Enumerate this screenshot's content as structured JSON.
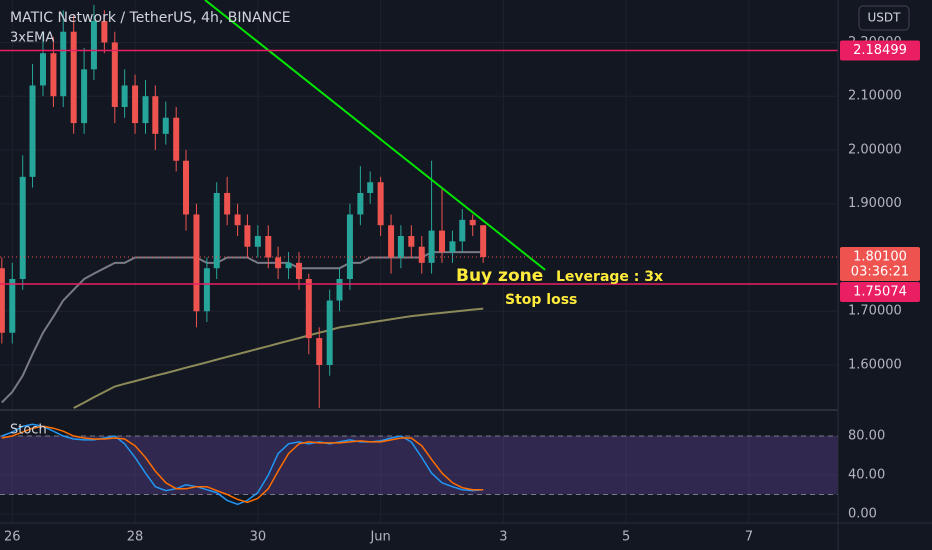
{
  "chart_data": [
    {
      "type": "candlestick",
      "title": "MATIC Network / TetherUS, 4h, BINANCE",
      "subtitle": "3xEMA",
      "currency": "USDT",
      "xlim": [
        -0.2,
        13.45
      ],
      "ylim": [
        1.52,
        2.279
      ],
      "yticks": [
        {
          "value": 1.6,
          "label": "1.60000"
        },
        {
          "value": 1.7,
          "label": "1.70000"
        },
        {
          "value": 1.9,
          "label": "1.90000"
        },
        {
          "value": 2.0,
          "label": "2.00000"
        },
        {
          "value": 2.1,
          "label": "2.10000"
        },
        {
          "value": 2.2,
          "label": "2.20000"
        }
      ],
      "grid": true,
      "up_color": "#26a69a",
      "down_color": "#ef5350",
      "x": [
        -0.17,
        0,
        0.17,
        0.33,
        0.5,
        0.67,
        0.83,
        1,
        1.17,
        1.33,
        1.5,
        1.67,
        1.83,
        2,
        2.17,
        2.33,
        2.5,
        2.67,
        2.83,
        3,
        3.17,
        3.33,
        3.5,
        3.67,
        3.83,
        4,
        4.17,
        4.33,
        4.5,
        4.67,
        4.83,
        5,
        5.17,
        5.33,
        5.5,
        5.67,
        5.83,
        6,
        6.17,
        6.33,
        6.5,
        6.67,
        6.83,
        7,
        7.17,
        7.33,
        7.5,
        7.67
      ],
      "open": [
        1.78,
        1.66,
        1.76,
        1.95,
        2.12,
        2.18,
        2.1,
        2.22,
        2.05,
        2.15,
        2.24,
        2.2,
        2.08,
        2.12,
        2.05,
        2.1,
        2.03,
        2.06,
        1.98,
        1.88,
        1.7,
        1.78,
        1.92,
        1.88,
        1.86,
        1.82,
        1.84,
        1.8,
        1.78,
        1.79,
        1.76,
        1.65,
        1.6,
        1.72,
        1.76,
        1.88,
        1.92,
        1.94,
        1.86,
        1.8,
        1.84,
        1.82,
        1.79,
        1.85,
        1.81,
        1.83,
        1.87,
        1.86
      ],
      "high": [
        1.8,
        1.79,
        1.99,
        2.16,
        2.22,
        2.21,
        2.26,
        2.25,
        2.19,
        2.27,
        2.26,
        2.22,
        2.15,
        2.14,
        2.13,
        2.12,
        2.09,
        2.08,
        2.0,
        1.9,
        1.8,
        1.94,
        1.95,
        1.9,
        1.88,
        1.86,
        1.86,
        1.82,
        1.81,
        1.81,
        1.77,
        1.67,
        1.74,
        1.78,
        1.9,
        1.97,
        1.96,
        1.95,
        1.88,
        1.86,
        1.86,
        1.84,
        1.98,
        1.93,
        1.85,
        1.89,
        1.88,
        1.86
      ],
      "low": [
        1.64,
        1.64,
        1.74,
        1.93,
        2.1,
        2.08,
        2.08,
        2.03,
        2.03,
        2.13,
        2.18,
        2.05,
        2.06,
        2.03,
        2.03,
        2.0,
        2.01,
        1.96,
        1.85,
        1.67,
        1.68,
        1.76,
        1.86,
        1.84,
        1.8,
        1.8,
        1.78,
        1.76,
        1.76,
        1.74,
        1.62,
        1.52,
        1.58,
        1.7,
        1.74,
        1.86,
        1.9,
        1.84,
        1.77,
        1.78,
        1.8,
        1.77,
        1.77,
        1.79,
        1.79,
        1.81,
        1.84,
        1.79
      ],
      "close": [
        1.66,
        1.76,
        1.95,
        2.12,
        2.18,
        2.1,
        2.22,
        2.05,
        2.15,
        2.24,
        2.2,
        2.08,
        2.12,
        2.05,
        2.1,
        2.03,
        2.06,
        1.98,
        1.88,
        1.7,
        1.78,
        1.92,
        1.88,
        1.86,
        1.82,
        1.84,
        1.8,
        1.78,
        1.79,
        1.76,
        1.65,
        1.6,
        1.72,
        1.76,
        1.88,
        1.92,
        1.94,
        1.86,
        1.8,
        1.84,
        1.82,
        1.79,
        1.85,
        1.81,
        1.83,
        1.87,
        1.86,
        1.801
      ],
      "series": [
        {
          "color": "#787b86",
          "values": [
            1.53,
            1.55,
            1.58,
            1.62,
            1.66,
            1.69,
            1.72,
            1.74,
            1.76,
            1.77,
            1.78,
            1.79,
            1.79,
            1.8,
            1.8,
            1.8,
            1.8,
            1.8,
            1.8,
            1.8,
            1.79,
            1.79,
            1.8,
            1.8,
            1.8,
            1.79,
            1.79,
            1.79,
            1.79,
            1.78,
            1.78,
            1.78,
            1.78,
            1.78,
            1.79,
            1.79,
            1.8,
            1.8,
            1.8,
            1.8,
            1.8,
            1.8,
            1.81,
            1.81,
            1.81,
            1.81,
            1.81,
            1.81
          ]
        },
        {
          "color": "#8d8a5a",
          "values": [
            null,
            null,
            null,
            null,
            null,
            null,
            null,
            1.52,
            1.53,
            1.54,
            1.55,
            1.56,
            1.565,
            1.57,
            1.575,
            1.58,
            1.585,
            1.59,
            1.595,
            1.6,
            1.605,
            1.61,
            1.615,
            1.62,
            1.625,
            1.63,
            1.635,
            1.64,
            1.645,
            1.65,
            1.655,
            1.66,
            1.665,
            1.67,
            1.673,
            1.676,
            1.679,
            1.682,
            1.685,
            1.688,
            1.691,
            1.693,
            1.695,
            1.697,
            1.699,
            1.701,
            1.703,
            1.705
          ]
        }
      ],
      "trendline": {
        "color": "#00e600",
        "x": [
          3.14,
          8.68
        ],
        "y": [
          2.279,
          1.777
        ]
      },
      "hlines": [
        {
          "value": 2.18499,
          "color": "#e91e63"
        },
        {
          "value": 1.75074,
          "color": "#e91e63"
        }
      ],
      "last_price": {
        "value": 1.801,
        "label": "1.80100",
        "countdown": "03:36:21",
        "color": "#ef5350"
      },
      "annotations": [
        "Buy zone",
        "Leverage : 3x",
        "Stop loss"
      ]
    },
    {
      "type": "stoch",
      "title": "Stoch",
      "xlim": [
        -0.2,
        13.45
      ],
      "ylim": [
        -9.2,
        106.7
      ],
      "xticks": [
        {
          "value": 0,
          "label": "26"
        },
        {
          "value": 2,
          "label": "28"
        },
        {
          "value": 4,
          "label": "30"
        },
        {
          "value": 6,
          "label": "Jun"
        },
        {
          "value": 8,
          "label": "3"
        },
        {
          "value": 10,
          "label": "5"
        },
        {
          "value": 12,
          "label": "7"
        }
      ],
      "yticks": [
        {
          "value": 0,
          "label": "0.00"
        },
        {
          "value": 40,
          "label": "40.00"
        },
        {
          "value": 80,
          "label": "80.00"
        }
      ],
      "band": [
        20,
        80
      ],
      "band_color": "#7e57c2",
      "x": [
        -0.17,
        0,
        0.17,
        0.33,
        0.5,
        0.67,
        0.83,
        1,
        1.17,
        1.33,
        1.5,
        1.67,
        1.83,
        2,
        2.17,
        2.33,
        2.5,
        2.67,
        2.83,
        3,
        3.17,
        3.33,
        3.5,
        3.67,
        3.83,
        4,
        4.17,
        4.33,
        4.5,
        4.67,
        4.83,
        5,
        5.17,
        5.33,
        5.5,
        5.67,
        5.83,
        6,
        6.17,
        6.33,
        6.5,
        6.67,
        6.83,
        7,
        7.17,
        7.33,
        7.5,
        7.67
      ],
      "series": [
        {
          "color": "#2196f3",
          "values": [
            80,
            84,
            90,
            92,
            90,
            85,
            80,
            77,
            76,
            76,
            78,
            80,
            72,
            58,
            42,
            28,
            24,
            26,
            30,
            28,
            25,
            22,
            14,
            10,
            14,
            22,
            40,
            62,
            72,
            74,
            72,
            74,
            72,
            74,
            76,
            74,
            74,
            75,
            78,
            80,
            74,
            58,
            42,
            32,
            28,
            25,
            24,
            25
          ]
        },
        {
          "color": "#ff6d00",
          "values": [
            78,
            80,
            84,
            88,
            90,
            88,
            85,
            80,
            78,
            77,
            77,
            78,
            77,
            70,
            58,
            44,
            32,
            26,
            26,
            28,
            28,
            24,
            20,
            15,
            12,
            16,
            26,
            44,
            62,
            72,
            74,
            73,
            73,
            73,
            74,
            75,
            74,
            74,
            76,
            78,
            78,
            70,
            56,
            42,
            32,
            27,
            25,
            25
          ]
        }
      ]
    }
  ]
}
